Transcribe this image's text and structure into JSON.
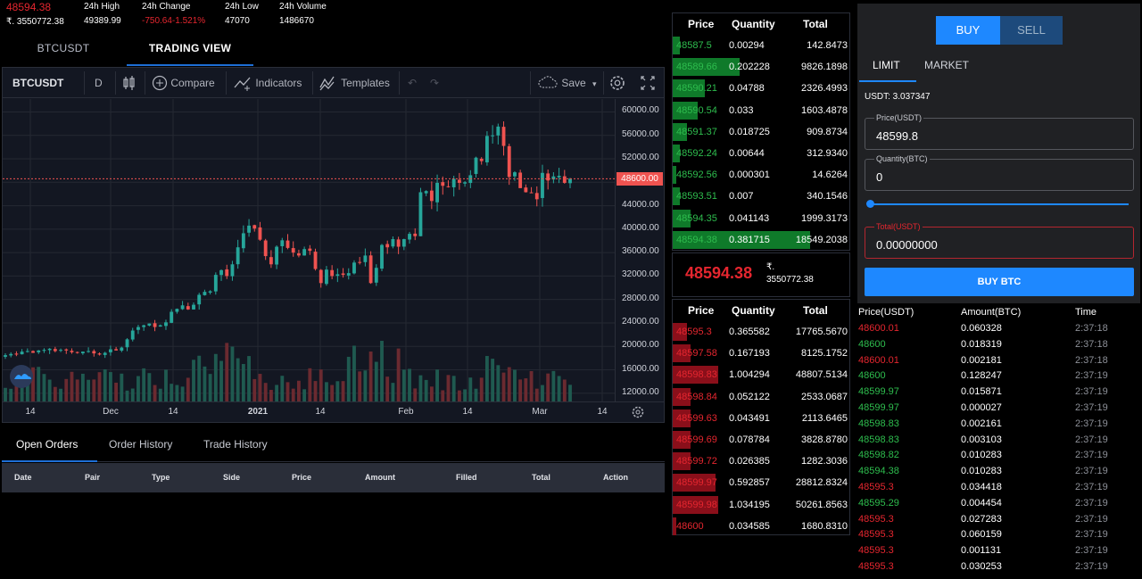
{
  "ticker": {
    "last_price": "48594.38",
    "last_price_inr": "₹. 3550772.38",
    "high_label": "24h High",
    "high_value": "49389.99",
    "change_label": "24h Change",
    "change_value": "-750.64-1.521%",
    "low_label": "24h Low",
    "low_value": "47070",
    "volume_label": "24h Volume",
    "volume_value": "1486670"
  },
  "left_tabs": [
    "BTCUSDT",
    "TRADING VIEW"
  ],
  "toolbar": {
    "symbol": "BTCUSDT",
    "interval": "D",
    "compare": "Compare",
    "indicators": "Indicators",
    "templates": "Templates",
    "save": "Save"
  },
  "chart_data": {
    "type": "candlestick",
    "symbol": "BTCUSDT",
    "interval": "D",
    "price_axis_ticks": [
      "60000.00",
      "56000.00",
      "52000.00",
      "48000.00",
      "44000.00",
      "40000.00",
      "36000.00",
      "32000.00",
      "28000.00",
      "24000.00",
      "20000.00",
      "16000.00",
      "12000.00"
    ],
    "time_axis_ticks": [
      "14",
      "Dec",
      "14",
      "2021",
      "14",
      "Feb",
      "14",
      "Mar",
      "14"
    ],
    "last_price_marker": "48600.00",
    "ylim": [
      10600,
      62200
    ],
    "closes": [
      18500,
      18700,
      18600,
      19100,
      19200,
      18900,
      19300,
      19400,
      19600,
      19200,
      19400,
      19300,
      19000,
      18900,
      19100,
      19200,
      18800,
      18600,
      18900,
      19500,
      19300,
      19800,
      21200,
      22700,
      23300,
      23600,
      23900,
      23300,
      23600,
      24100,
      25900,
      26400,
      27000,
      26300,
      27100,
      28800,
      29300,
      29400,
      32200,
      33000,
      32000,
      34000,
      36900,
      39300,
      40600,
      40100,
      38200,
      35400,
      34000,
      37000,
      38100,
      36800,
      36000,
      35500,
      36600,
      36300,
      33200,
      30800,
      33100,
      32000,
      32300,
      32200,
      32500,
      34300,
      34300,
      35500,
      30800,
      33400,
      37300,
      36900,
      38300,
      37000,
      38300,
      39200,
      38800,
      46300,
      46500,
      44800,
      47900,
      47400,
      47200,
      48600,
      47900,
      48000,
      49200,
      52200,
      51600,
      55900,
      56000,
      57500,
      54200,
      48900,
      49700,
      47000,
      46300,
      46200,
      45100,
      49600,
      48300,
      49000,
      49100,
      47900,
      48600
    ],
    "volume_scale": "relative"
  },
  "mid": {
    "price": "48594.38",
    "inr_symbol": "₹.",
    "inr_value": "3550772.38"
  },
  "book_headers": {
    "price": "Price",
    "quantity": "Quantity",
    "total": "Total"
  },
  "asks": [
    {
      "price": "48587.5",
      "qty": "0.00294",
      "total": "142.8473",
      "depth": 0.04
    },
    {
      "price": "48589.66",
      "qty": "0.202228",
      "total": "9826.1898",
      "depth": 0.38
    },
    {
      "price": "48590.21",
      "qty": "0.04788",
      "total": "2326.4993",
      "depth": 0.18
    },
    {
      "price": "48590.54",
      "qty": "0.033",
      "total": "1603.4878",
      "depth": 0.14
    },
    {
      "price": "48591.37",
      "qty": "0.018725",
      "total": "909.8734",
      "depth": 0.08
    },
    {
      "price": "48592.24",
      "qty": "0.00644",
      "total": "312.9340",
      "depth": 0.04
    },
    {
      "price": "48592.56",
      "qty": "0.000301",
      "total": "14.6264",
      "depth": 0.02
    },
    {
      "price": "48593.51",
      "qty": "0.007",
      "total": "340.1546",
      "depth": 0.04
    },
    {
      "price": "48594.35",
      "qty": "0.041143",
      "total": "1999.3173",
      "depth": 0.1
    },
    {
      "price": "48594.38",
      "qty": "0.381715",
      "total": "18549.2038",
      "depth": 0.78
    }
  ],
  "bids": [
    {
      "price": "48595.3",
      "qty": "0.365582",
      "total": "17765.5670",
      "depth": 0.08
    },
    {
      "price": "48597.58",
      "qty": "0.167193",
      "total": "8125.1752",
      "depth": 0.1
    },
    {
      "price": "48598.83",
      "qty": "1.004294",
      "total": "48807.5134",
      "depth": 0.26
    },
    {
      "price": "48598.84",
      "qty": "0.052122",
      "total": "2533.0687",
      "depth": 0.1
    },
    {
      "price": "48599.63",
      "qty": "0.043491",
      "total": "2113.6465",
      "depth": 0.1
    },
    {
      "price": "48599.69",
      "qty": "0.078784",
      "total": "3828.8780",
      "depth": 0.1
    },
    {
      "price": "48599.72",
      "qty": "0.026385",
      "total": "1282.3036",
      "depth": 0.1
    },
    {
      "price": "48599.97",
      "qty": "0.592857",
      "total": "28812.8324",
      "depth": 0.24
    },
    {
      "price": "48599.98",
      "qty": "1.034195",
      "total": "50261.8563",
      "depth": 0.26
    },
    {
      "price": "48600",
      "qty": "0.034585",
      "total": "1680.8310",
      "depth": 0.02
    }
  ],
  "orders": {
    "tabs": [
      "Open Orders",
      "Order History",
      "Trade History"
    ],
    "columns": [
      "Date",
      "Pair",
      "Type",
      "Side",
      "Price",
      "Amount",
      "Filled",
      "Total",
      "Action"
    ]
  },
  "form": {
    "buy_label": "BUY",
    "sell_label": "SELL",
    "limit_label": "LIMIT",
    "market_label": "MARKET",
    "balance": "USDT: 3.037347",
    "price_label": "Price(USDT)",
    "price_value": "48599.8",
    "qty_label": "Quantity(BTC)",
    "qty_value": "0",
    "slider_value": 0,
    "total_label": "Total(USDT)",
    "total_value": "0.00000000",
    "submit_label": "BUY BTC"
  },
  "trades": {
    "columns": [
      "Price(USDT)",
      "Amount(BTC)",
      "Time"
    ],
    "rows": [
      {
        "price": "48600.01",
        "amount": "0.060328",
        "time": "2:37:18",
        "side": "red"
      },
      {
        "price": "48600",
        "amount": "0.018319",
        "time": "2:37:18",
        "side": "green"
      },
      {
        "price": "48600.01",
        "amount": "0.002181",
        "time": "2:37:18",
        "side": "red"
      },
      {
        "price": "48600",
        "amount": "0.128247",
        "time": "2:37:19",
        "side": "green"
      },
      {
        "price": "48599.97",
        "amount": "0.015871",
        "time": "2:37:19",
        "side": "green"
      },
      {
        "price": "48599.97",
        "amount": "0.000027",
        "time": "2:37:19",
        "side": "green"
      },
      {
        "price": "48598.83",
        "amount": "0.002161",
        "time": "2:37:19",
        "side": "green"
      },
      {
        "price": "48598.83",
        "amount": "0.003103",
        "time": "2:37:19",
        "side": "green"
      },
      {
        "price": "48598.82",
        "amount": "0.010283",
        "time": "2:37:19",
        "side": "green"
      },
      {
        "price": "48594.38",
        "amount": "0.010283",
        "time": "2:37:19",
        "side": "green"
      },
      {
        "price": "48595.3",
        "amount": "0.034418",
        "time": "2:37:19",
        "side": "red"
      },
      {
        "price": "48595.29",
        "amount": "0.004454",
        "time": "2:37:19",
        "side": "green"
      },
      {
        "price": "48595.3",
        "amount": "0.027283",
        "time": "2:37:19",
        "side": "red"
      },
      {
        "price": "48595.3",
        "amount": "0.060159",
        "time": "2:37:19",
        "side": "red"
      },
      {
        "price": "48595.3",
        "amount": "0.001131",
        "time": "2:37:19",
        "side": "red"
      },
      {
        "price": "48595.3",
        "amount": "0.030253",
        "time": "2:37:19",
        "side": "red"
      }
    ]
  },
  "colors": {
    "up": "#26a69a",
    "down": "#ef5350",
    "ask_bar": "#0f7a2a",
    "bid_bar": "#8a0f1a",
    "accent": "#1e88ff"
  }
}
